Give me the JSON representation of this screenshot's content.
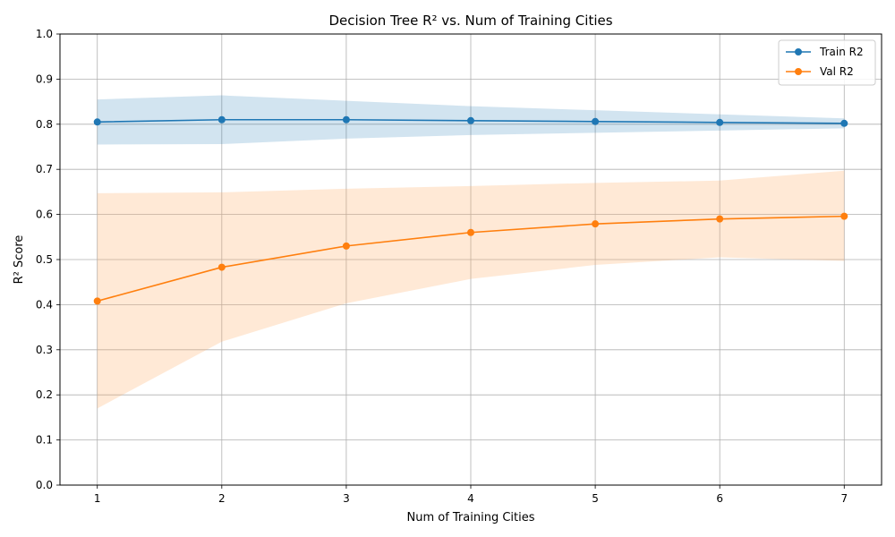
{
  "chart_data": {
    "type": "line",
    "title": "Decision Tree R² vs. Num of Training Cities",
    "xlabel": "Num of Training Cities",
    "ylabel": "R² Score",
    "x": [
      1,
      2,
      3,
      4,
      5,
      6,
      7
    ],
    "xlim": [
      0.7,
      7.3
    ],
    "ylim": [
      0.0,
      1.0
    ],
    "xticks": [
      "1",
      "2",
      "3",
      "4",
      "5",
      "6",
      "7"
    ],
    "yticks": [
      "0.0",
      "0.1",
      "0.2",
      "0.3",
      "0.4",
      "0.5",
      "0.6",
      "0.7",
      "0.8",
      "0.9",
      "1.0"
    ],
    "grid": true,
    "legend_position": "top-right",
    "series": [
      {
        "name": "Train R2",
        "color": "#1f77b4",
        "band_color": "#1f77b4",
        "values": [
          0.805,
          0.81,
          0.81,
          0.808,
          0.806,
          0.804,
          0.802
        ],
        "lower": [
          0.755,
          0.756,
          0.768,
          0.776,
          0.781,
          0.786,
          0.791
        ],
        "upper": [
          0.855,
          0.864,
          0.852,
          0.84,
          0.831,
          0.822,
          0.813
        ]
      },
      {
        "name": "Val R2",
        "color": "#ff7f0e",
        "band_color": "#ffa85c",
        "values": [
          0.408,
          0.483,
          0.53,
          0.56,
          0.579,
          0.59,
          0.596
        ],
        "lower": [
          0.17,
          0.318,
          0.403,
          0.457,
          0.488,
          0.505,
          0.497
        ],
        "upper": [
          0.647,
          0.649,
          0.657,
          0.663,
          0.67,
          0.675,
          0.697
        ]
      }
    ]
  }
}
